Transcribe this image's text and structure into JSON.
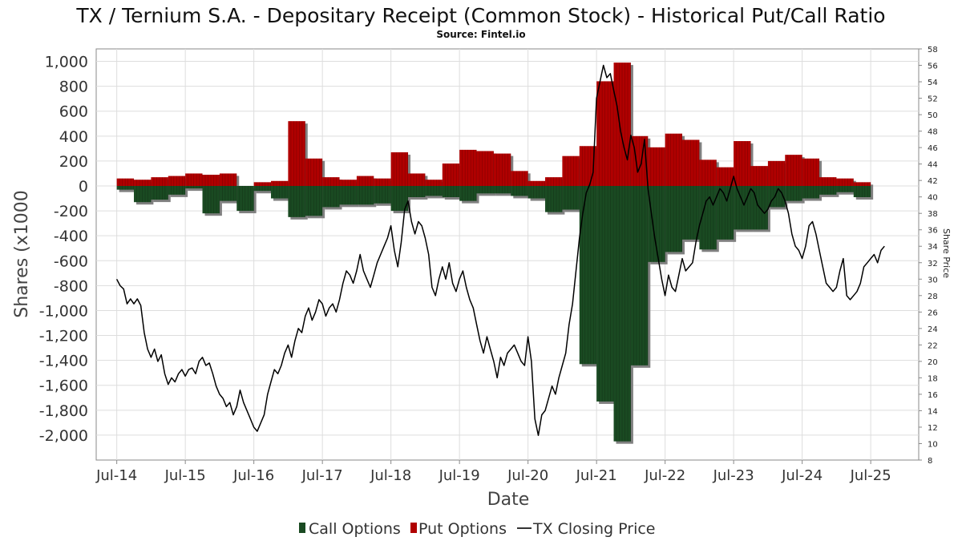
{
  "title": "TX / Ternium S.A. - Depositary Receipt (Common Stock) - Historical Put/Call Ratio",
  "subtitle": "Source: Fintel.io",
  "colors": {
    "call": "#1a4a22",
    "put": "#b00000",
    "price": "#000000",
    "shadow": "#808080",
    "grid": "#dddddd"
  },
  "chart_data": {
    "type": "bar",
    "xlabel": "Date",
    "ylabel": "Shares (x1000",
    "y2label": "Share Price",
    "ylim": [
      -2200,
      1100
    ],
    "y2lim": [
      8,
      58
    ],
    "yticks": [
      1000,
      800,
      600,
      400,
      200,
      0,
      -200,
      -400,
      -600,
      -800,
      -1000,
      -1200,
      -1400,
      -1600,
      -1800,
      -2000
    ],
    "ytick_labels": [
      "1,000",
      "800",
      "600",
      "400",
      "200",
      "0",
      "-200",
      "-400",
      "-600",
      "-800",
      "-1,000",
      "-1,200",
      "-1,400",
      "-1,600",
      "-1,800",
      "-2,000"
    ],
    "y2ticks": [
      58,
      56,
      54,
      52,
      50,
      48,
      46,
      44,
      42,
      40,
      38,
      36,
      34,
      32,
      30,
      28,
      26,
      24,
      22,
      20,
      18,
      16,
      14,
      12,
      10,
      8
    ],
    "y2tick_labels": [
      "58",
      "56",
      "54",
      "52",
      "50",
      "48",
      "46",
      "44",
      "42",
      "40",
      "38",
      "36",
      "34",
      "32",
      "30",
      "28",
      "26",
      "24",
      "22",
      "20",
      "18",
      "16",
      "14",
      "12",
      "10",
      "8"
    ],
    "xlim": [
      2014.2,
      2026.2
    ],
    "xticks": [
      2014.5,
      2015.5,
      2016.5,
      2017.5,
      2018.5,
      2019.5,
      2020.5,
      2021.5,
      2022.5,
      2023.5,
      2024.5,
      2025.5
    ],
    "xtick_labels": [
      "Jul-14",
      "Jul-15",
      "Jul-16",
      "Jul-17",
      "Jul-18",
      "Jul-19",
      "Jul-20",
      "Jul-21",
      "Jul-22",
      "Jul-23",
      "Jul-24",
      "Jul-25"
    ],
    "grid": true,
    "legend_position": "bottom",
    "legend": [
      "Call Options",
      "Put Options",
      "TX Closing Price"
    ],
    "bar_periods": [
      {
        "start": 2014.5,
        "end": 2014.75,
        "put": 60,
        "call": -30
      },
      {
        "start": 2014.75,
        "end": 2015.0,
        "put": 50,
        "call": -130
      },
      {
        "start": 2015.0,
        "end": 2015.25,
        "put": 70,
        "call": -110
      },
      {
        "start": 2015.25,
        "end": 2015.5,
        "put": 80,
        "call": -70
      },
      {
        "start": 2015.5,
        "end": 2015.75,
        "put": 100,
        "call": -20
      },
      {
        "start": 2015.75,
        "end": 2016.0,
        "put": 90,
        "call": -220
      },
      {
        "start": 2016.0,
        "end": 2016.25,
        "put": 100,
        "call": -120
      },
      {
        "start": 2016.25,
        "end": 2016.5,
        "put": 0,
        "call": -200
      },
      {
        "start": 2016.5,
        "end": 2016.75,
        "put": 30,
        "call": -40
      },
      {
        "start": 2016.75,
        "end": 2017.0,
        "put": 40,
        "call": -100
      },
      {
        "start": 2017.0,
        "end": 2017.25,
        "put": 520,
        "call": -250
      },
      {
        "start": 2017.25,
        "end": 2017.5,
        "put": 220,
        "call": -240
      },
      {
        "start": 2017.5,
        "end": 2017.75,
        "put": 70,
        "call": -170
      },
      {
        "start": 2017.75,
        "end": 2018.0,
        "put": 50,
        "call": -150
      },
      {
        "start": 2018.0,
        "end": 2018.25,
        "put": 80,
        "call": -150
      },
      {
        "start": 2018.25,
        "end": 2018.5,
        "put": 60,
        "call": -140
      },
      {
        "start": 2018.5,
        "end": 2018.75,
        "put": 270,
        "call": -200
      },
      {
        "start": 2018.75,
        "end": 2019.0,
        "put": 100,
        "call": -90
      },
      {
        "start": 2019.0,
        "end": 2019.25,
        "put": 50,
        "call": -80
      },
      {
        "start": 2019.25,
        "end": 2019.5,
        "put": 180,
        "call": -90
      },
      {
        "start": 2019.5,
        "end": 2019.75,
        "put": 290,
        "call": -120
      },
      {
        "start": 2019.75,
        "end": 2020.0,
        "put": 280,
        "call": -60
      },
      {
        "start": 2020.0,
        "end": 2020.25,
        "put": 260,
        "call": -60
      },
      {
        "start": 2020.25,
        "end": 2020.5,
        "put": 120,
        "call": -80
      },
      {
        "start": 2020.5,
        "end": 2020.75,
        "put": 40,
        "call": -100
      },
      {
        "start": 2020.75,
        "end": 2021.0,
        "put": 70,
        "call": -210
      },
      {
        "start": 2021.0,
        "end": 2021.25,
        "put": 240,
        "call": -190
      },
      {
        "start": 2021.25,
        "end": 2021.5,
        "put": 320,
        "call": -1430
      },
      {
        "start": 2021.5,
        "end": 2021.75,
        "put": 840,
        "call": -1730
      },
      {
        "start": 2021.75,
        "end": 2022.0,
        "put": 990,
        "call": -2050
      },
      {
        "start": 2022.0,
        "end": 2022.25,
        "put": 400,
        "call": -1440
      },
      {
        "start": 2022.25,
        "end": 2022.5,
        "put": 310,
        "call": -610
      },
      {
        "start": 2022.5,
        "end": 2022.75,
        "put": 420,
        "call": -530
      },
      {
        "start": 2022.75,
        "end": 2023.0,
        "put": 370,
        "call": -430
      },
      {
        "start": 2023.0,
        "end": 2023.25,
        "put": 210,
        "call": -510
      },
      {
        "start": 2023.25,
        "end": 2023.5,
        "put": 150,
        "call": -430
      },
      {
        "start": 2023.5,
        "end": 2023.75,
        "put": 360,
        "call": -350
      },
      {
        "start": 2023.75,
        "end": 2024.0,
        "put": 160,
        "call": -350
      },
      {
        "start": 2024.0,
        "end": 2024.25,
        "put": 200,
        "call": -170
      },
      {
        "start": 2024.25,
        "end": 2024.5,
        "put": 250,
        "call": -120
      },
      {
        "start": 2024.5,
        "end": 2024.75,
        "put": 220,
        "call": -100
      },
      {
        "start": 2024.75,
        "end": 2025.0,
        "put": 70,
        "call": -70
      },
      {
        "start": 2025.0,
        "end": 2025.25,
        "put": 60,
        "call": -50
      },
      {
        "start": 2025.25,
        "end": 2025.5,
        "put": 30,
        "call": -90
      }
    ],
    "price_series": [
      [
        2014.5,
        30.0
      ],
      [
        2014.55,
        29.2
      ],
      [
        2014.6,
        28.8
      ],
      [
        2014.65,
        27.0
      ],
      [
        2014.7,
        27.6
      ],
      [
        2014.75,
        27.0
      ],
      [
        2014.8,
        27.6
      ],
      [
        2014.85,
        26.8
      ],
      [
        2014.9,
        23.5
      ],
      [
        2014.95,
        21.5
      ],
      [
        2015.0,
        20.5
      ],
      [
        2015.05,
        21.5
      ],
      [
        2015.1,
        20.0
      ],
      [
        2015.15,
        20.8
      ],
      [
        2015.2,
        18.5
      ],
      [
        2015.25,
        17.2
      ],
      [
        2015.3,
        18.0
      ],
      [
        2015.35,
        17.5
      ],
      [
        2015.4,
        18.5
      ],
      [
        2015.45,
        19.0
      ],
      [
        2015.5,
        18.2
      ],
      [
        2015.55,
        19.0
      ],
      [
        2015.6,
        19.2
      ],
      [
        2015.65,
        18.5
      ],
      [
        2015.7,
        20.0
      ],
      [
        2015.75,
        20.5
      ],
      [
        2015.8,
        19.5
      ],
      [
        2015.85,
        19.8
      ],
      [
        2015.9,
        18.5
      ],
      [
        2015.95,
        17.0
      ],
      [
        2016.0,
        16.0
      ],
      [
        2016.05,
        15.5
      ],
      [
        2016.1,
        14.5
      ],
      [
        2016.15,
        15.0
      ],
      [
        2016.2,
        13.5
      ],
      [
        2016.25,
        14.5
      ],
      [
        2016.3,
        16.5
      ],
      [
        2016.35,
        15.0
      ],
      [
        2016.4,
        14.0
      ],
      [
        2016.45,
        13.0
      ],
      [
        2016.5,
        12.0
      ],
      [
        2016.55,
        11.5
      ],
      [
        2016.6,
        12.5
      ],
      [
        2016.65,
        13.5
      ],
      [
        2016.7,
        16.0
      ],
      [
        2016.75,
        17.5
      ],
      [
        2016.8,
        19.0
      ],
      [
        2016.85,
        18.5
      ],
      [
        2016.9,
        19.5
      ],
      [
        2016.95,
        21.0
      ],
      [
        2017.0,
        22.0
      ],
      [
        2017.05,
        20.5
      ],
      [
        2017.1,
        22.5
      ],
      [
        2017.15,
        24.0
      ],
      [
        2017.2,
        23.5
      ],
      [
        2017.25,
        25.5
      ],
      [
        2017.3,
        26.5
      ],
      [
        2017.35,
        25.0
      ],
      [
        2017.4,
        26.0
      ],
      [
        2017.45,
        27.5
      ],
      [
        2017.5,
        27.0
      ],
      [
        2017.55,
        25.5
      ],
      [
        2017.6,
        26.5
      ],
      [
        2017.65,
        27.0
      ],
      [
        2017.7,
        26.0
      ],
      [
        2017.75,
        27.5
      ],
      [
        2017.8,
        29.5
      ],
      [
        2017.85,
        31.0
      ],
      [
        2017.9,
        30.5
      ],
      [
        2017.95,
        29.5
      ],
      [
        2018.0,
        31.0
      ],
      [
        2018.05,
        33.0
      ],
      [
        2018.1,
        31.0
      ],
      [
        2018.15,
        30.0
      ],
      [
        2018.2,
        29.0
      ],
      [
        2018.25,
        30.5
      ],
      [
        2018.3,
        32.0
      ],
      [
        2018.35,
        33.0
      ],
      [
        2018.4,
        34.0
      ],
      [
        2018.45,
        35.0
      ],
      [
        2018.5,
        36.5
      ],
      [
        2018.55,
        33.5
      ],
      [
        2018.6,
        31.5
      ],
      [
        2018.65,
        34.5
      ],
      [
        2018.7,
        38.5
      ],
      [
        2018.75,
        39.5
      ],
      [
        2018.8,
        37.0
      ],
      [
        2018.85,
        35.5
      ],
      [
        2018.9,
        37.0
      ],
      [
        2018.95,
        36.5
      ],
      [
        2019.0,
        35.0
      ],
      [
        2019.05,
        33.0
      ],
      [
        2019.1,
        29.0
      ],
      [
        2019.15,
        28.0
      ],
      [
        2019.2,
        30.0
      ],
      [
        2019.25,
        31.5
      ],
      [
        2019.3,
        30.0
      ],
      [
        2019.35,
        32.0
      ],
      [
        2019.4,
        29.5
      ],
      [
        2019.45,
        28.5
      ],
      [
        2019.5,
        30.0
      ],
      [
        2019.55,
        31.0
      ],
      [
        2019.6,
        29.0
      ],
      [
        2019.65,
        27.5
      ],
      [
        2019.7,
        26.5
      ],
      [
        2019.75,
        24.5
      ],
      [
        2019.8,
        22.5
      ],
      [
        2019.85,
        21.0
      ],
      [
        2019.9,
        23.0
      ],
      [
        2019.95,
        21.5
      ],
      [
        2020.0,
        20.0
      ],
      [
        2020.05,
        18.0
      ],
      [
        2020.1,
        20.5
      ],
      [
        2020.15,
        19.5
      ],
      [
        2020.2,
        21.0
      ],
      [
        2020.25,
        21.5
      ],
      [
        2020.3,
        22.0
      ],
      [
        2020.35,
        21.0
      ],
      [
        2020.4,
        20.0
      ],
      [
        2020.45,
        19.5
      ],
      [
        2020.5,
        23.0
      ],
      [
        2020.55,
        20.0
      ],
      [
        2020.6,
        13.0
      ],
      [
        2020.65,
        11.0
      ],
      [
        2020.7,
        13.5
      ],
      [
        2020.75,
        14.0
      ],
      [
        2020.8,
        15.5
      ],
      [
        2020.85,
        17.0
      ],
      [
        2020.9,
        16.0
      ],
      [
        2020.95,
        18.0
      ],
      [
        2021.0,
        19.5
      ],
      [
        2021.05,
        21.0
      ],
      [
        2021.1,
        24.5
      ],
      [
        2021.15,
        27.0
      ],
      [
        2021.2,
        31.0
      ],
      [
        2021.25,
        35.0
      ],
      [
        2021.3,
        38.0
      ],
      [
        2021.35,
        40.5
      ],
      [
        2021.4,
        41.5
      ],
      [
        2021.45,
        43.0
      ],
      [
        2021.5,
        52.0
      ],
      [
        2021.55,
        54.0
      ],
      [
        2021.6,
        56.0
      ],
      [
        2021.65,
        54.5
      ],
      [
        2021.7,
        55.0
      ],
      [
        2021.75,
        53.0
      ],
      [
        2021.8,
        51.0
      ],
      [
        2021.85,
        48.0
      ],
      [
        2021.9,
        46.0
      ],
      [
        2021.95,
        44.5
      ],
      [
        2022.0,
        47.5
      ],
      [
        2022.05,
        46.0
      ],
      [
        2022.1,
        43.0
      ],
      [
        2022.15,
        44.0
      ],
      [
        2022.2,
        47.0
      ],
      [
        2022.25,
        41.0
      ],
      [
        2022.3,
        38.0
      ],
      [
        2022.35,
        35.0
      ],
      [
        2022.4,
        32.5
      ],
      [
        2022.45,
        30.0
      ],
      [
        2022.5,
        28.0
      ],
      [
        2022.55,
        30.5
      ],
      [
        2022.6,
        29.0
      ],
      [
        2022.65,
        28.5
      ],
      [
        2022.7,
        30.5
      ],
      [
        2022.75,
        32.5
      ],
      [
        2022.8,
        31.0
      ],
      [
        2022.85,
        31.5
      ],
      [
        2022.9,
        32.0
      ],
      [
        2022.95,
        34.5
      ],
      [
        2023.0,
        36.5
      ],
      [
        2023.05,
        38.0
      ],
      [
        2023.1,
        39.5
      ],
      [
        2023.15,
        40.0
      ],
      [
        2023.2,
        39.0
      ],
      [
        2023.25,
        40.0
      ],
      [
        2023.3,
        41.0
      ],
      [
        2023.35,
        40.5
      ],
      [
        2023.4,
        39.5
      ],
      [
        2023.45,
        41.0
      ],
      [
        2023.5,
        42.5
      ],
      [
        2023.55,
        41.0
      ],
      [
        2023.6,
        40.0
      ],
      [
        2023.65,
        39.0
      ],
      [
        2023.7,
        40.0
      ],
      [
        2023.75,
        41.0
      ],
      [
        2023.8,
        40.5
      ],
      [
        2023.85,
        39.0
      ],
      [
        2023.9,
        38.5
      ],
      [
        2023.95,
        38.0
      ],
      [
        2024.0,
        38.5
      ],
      [
        2024.05,
        39.5
      ],
      [
        2024.1,
        40.0
      ],
      [
        2024.15,
        41.0
      ],
      [
        2024.2,
        40.5
      ],
      [
        2024.25,
        39.5
      ],
      [
        2024.3,
        38.0
      ],
      [
        2024.35,
        35.5
      ],
      [
        2024.4,
        34.0
      ],
      [
        2024.45,
        33.5
      ],
      [
        2024.5,
        32.5
      ],
      [
        2024.55,
        34.0
      ],
      [
        2024.6,
        36.5
      ],
      [
        2024.65,
        37.0
      ],
      [
        2024.7,
        35.5
      ],
      [
        2024.75,
        33.5
      ],
      [
        2024.8,
        31.5
      ],
      [
        2024.85,
        29.5
      ],
      [
        2024.9,
        29.0
      ],
      [
        2024.95,
        28.5
      ],
      [
        2025.0,
        29.0
      ],
      [
        2025.05,
        31.0
      ],
      [
        2025.1,
        32.5
      ],
      [
        2025.15,
        28.0
      ],
      [
        2025.2,
        27.5
      ],
      [
        2025.25,
        28.0
      ],
      [
        2025.3,
        28.5
      ],
      [
        2025.35,
        29.5
      ],
      [
        2025.4,
        31.5
      ],
      [
        2025.45,
        32.0
      ],
      [
        2025.5,
        32.5
      ],
      [
        2025.55,
        33.0
      ],
      [
        2025.6,
        32.0
      ],
      [
        2025.65,
        33.5
      ],
      [
        2025.7,
        34.0
      ]
    ]
  }
}
